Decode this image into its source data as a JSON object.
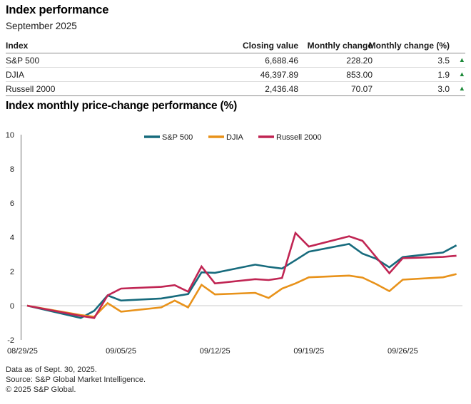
{
  "header": {
    "title": "Index performance",
    "subtitle": "September 2025"
  },
  "table": {
    "columns": [
      "Index",
      "Closing value",
      "Monthly change",
      "Monthly change (%)"
    ],
    "rows": [
      {
        "index": "S&P 500",
        "closing_value": "6,688.46",
        "monthly_change": "228.20",
        "monthly_change_pct": "3.5",
        "direction": "up"
      },
      {
        "index": "DJIA",
        "closing_value": "46,397.89",
        "monthly_change": "853.00",
        "monthly_change_pct": "1.9",
        "direction": "up"
      },
      {
        "index": "Russell 2000",
        "closing_value": "2,436.48",
        "monthly_change": "70.07",
        "monthly_change_pct": "3.0",
        "direction": "up"
      }
    ]
  },
  "chart_data": {
    "type": "line",
    "title": "Index monthly price-change performance (%)",
    "x_dates": [
      "08/29/25",
      "09/02/25",
      "09/03/25",
      "09/04/25",
      "09/05/25",
      "09/08/25",
      "09/09/25",
      "09/10/25",
      "09/11/25",
      "09/12/25",
      "09/15/25",
      "09/16/25",
      "09/17/25",
      "09/18/25",
      "09/19/25",
      "09/22/25",
      "09/23/25",
      "09/24/25",
      "09/25/25",
      "09/26/25",
      "09/29/25",
      "09/30/25"
    ],
    "x_day_offsets": [
      0,
      4,
      5,
      6,
      7,
      10,
      11,
      12,
      13,
      14,
      17,
      18,
      19,
      20,
      21,
      24,
      25,
      26,
      27,
      28,
      31,
      32
    ],
    "x_axis_range_days": [
      0,
      32
    ],
    "x_tick_labels": [
      "08/29/25",
      "09/05/25",
      "09/12/25",
      "09/19/25",
      "09/26/25"
    ],
    "x_tick_day_offsets": [
      0,
      7,
      14,
      21,
      28
    ],
    "ylim": [
      -2,
      10
    ],
    "y_ticks": [
      10,
      8,
      6,
      4,
      2,
      0,
      -2
    ],
    "grid": "zero-line-only",
    "legend_position": "top-center",
    "series": [
      {
        "name": "S&P 500",
        "color": "#176b7d",
        "values": [
          0,
          -0.72,
          -0.3,
          0.6,
          0.3,
          0.42,
          0.55,
          0.68,
          1.95,
          1.92,
          2.4,
          2.27,
          2.17,
          2.66,
          3.16,
          3.61,
          3.04,
          2.75,
          2.24,
          2.84,
          3.11,
          3.53
        ]
      },
      {
        "name": "DJIA",
        "color": "#e8921a",
        "values": [
          0,
          -0.55,
          -0.65,
          0.15,
          -0.35,
          -0.1,
          0.3,
          -0.1,
          1.22,
          0.66,
          0.75,
          0.45,
          1.0,
          1.3,
          1.66,
          1.76,
          1.64,
          1.27,
          0.85,
          1.52,
          1.66,
          1.85
        ]
      },
      {
        "name": "Russell 2000",
        "color": "#c02553",
        "values": [
          0,
          -0.6,
          -0.72,
          0.6,
          1.0,
          1.1,
          1.2,
          0.82,
          2.29,
          1.3,
          1.55,
          1.5,
          1.62,
          4.25,
          3.46,
          4.06,
          3.79,
          2.85,
          1.9,
          2.78,
          2.85,
          2.92
        ]
      }
    ]
  },
  "footer": {
    "lines": [
      "Data as of Sept. 30, 2025.",
      "Source: S&P Global Market Intelligence.",
      "© 2025 S&P Global."
    ]
  },
  "colors": {
    "up_green": "#1e8a3a",
    "sp500_teal": "#176b7d",
    "djia_orange": "#e8921a",
    "russell_crimson": "#c02553"
  },
  "icons": {
    "up_triangle": "▲"
  }
}
